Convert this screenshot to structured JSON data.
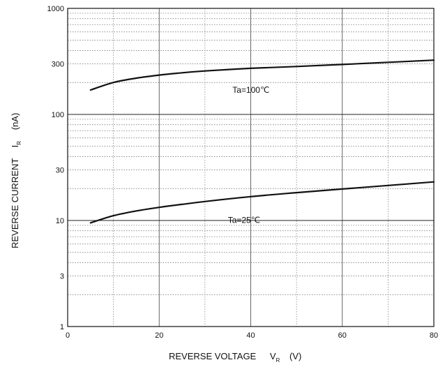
{
  "chart_data": {
    "type": "line",
    "x_axis": {
      "label": "REVERSE VOLTAGE",
      "symbol": "V",
      "subscript": "R",
      "unit": "(V)",
      "range": [
        0,
        80
      ],
      "ticks": [
        0,
        20,
        40,
        60,
        80
      ],
      "tick_labels": [
        "0",
        "20",
        "40",
        "60",
        "80"
      ]
    },
    "y_axis": {
      "label": "REVERSE CURRENT",
      "symbol": "I",
      "subscript": "R",
      "unit": "(nA)",
      "scale": "log",
      "range": [
        1,
        1000
      ],
      "ticks": [
        1,
        3,
        10,
        30,
        100,
        300,
        1000
      ],
      "tick_labels": [
        "1",
        "3",
        "10",
        "30",
        "100",
        "300",
        "1000"
      ]
    },
    "grid": true,
    "series": [
      {
        "name": "Ta=100℃",
        "x": [
          5,
          10,
          15,
          20,
          25,
          30,
          40,
          50,
          60,
          70,
          80
        ],
        "y": [
          170,
          200,
          220,
          235,
          247,
          257,
          272,
          283,
          296,
          310,
          325
        ]
      },
      {
        "name": "Ta=25℃",
        "x": [
          5,
          10,
          15,
          20,
          25,
          30,
          40,
          50,
          60,
          70,
          80
        ],
        "y": [
          9.5,
          11.1,
          12.3,
          13.3,
          14.2,
          15.1,
          16.8,
          18.3,
          19.8,
          21.4,
          23.1
        ]
      }
    ],
    "annotations": [
      {
        "text": "Ta=100℃",
        "x": 36,
        "y": 160
      },
      {
        "text": "Ta=25℃",
        "x": 35,
        "y": 9.5
      }
    ]
  }
}
